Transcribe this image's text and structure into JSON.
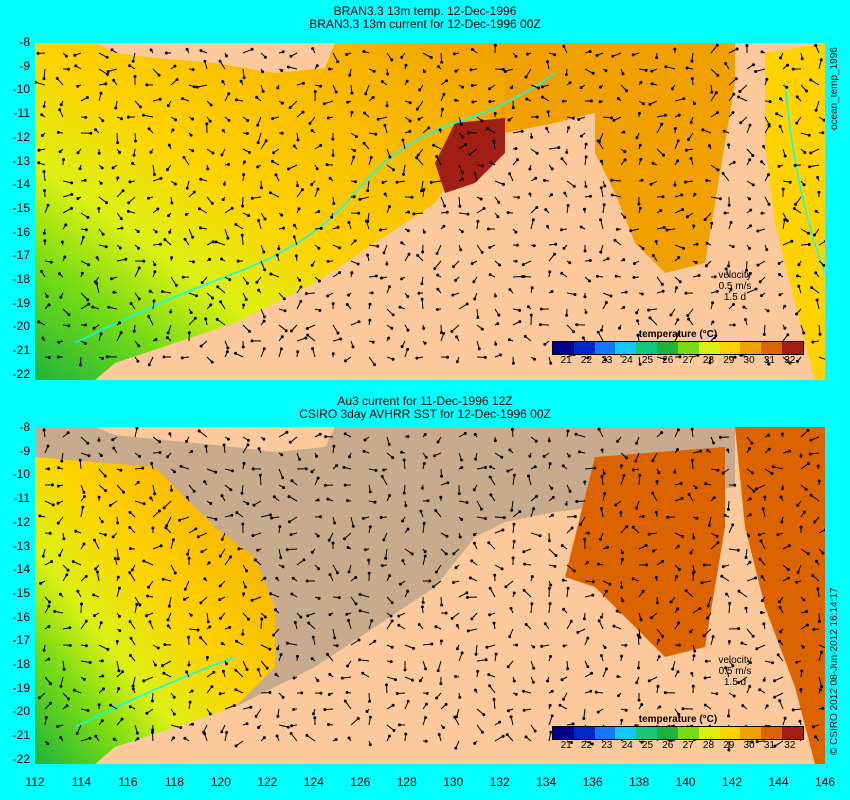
{
  "top_panel": {
    "title_line1": "BRAN3.3 13m temp. 12-Dec-1996",
    "title_line2": "BRAN3.3 13m current for 12-Dec-1996 00Z",
    "side_label": "ocean_temp_1996",
    "velocity_label": "velocity",
    "velocity_scale": "0.5 m/s",
    "velocity_time": "1.5 d",
    "legend_title": "temperature (°C)",
    "land_color": "#fcc99c"
  },
  "bottom_panel": {
    "title_line1": "Au3 current for 11-Dec-1996 12Z",
    "title_line2": "CSIRO 3day AVHRR SST for 12-Dec-1996 00Z",
    "side_label": "© CSIRO 2012  08-Jun-2012 16:14:17",
    "velocity_label": "velocity",
    "velocity_scale": "0.5 m/s",
    "velocity_time": "1.5 d",
    "legend_title": "temperature (°C)",
    "no_data_color": "#c8aa8c"
  },
  "y_ticks": [
    "-8",
    "-9",
    "-10",
    "-11",
    "-12",
    "-13",
    "-14",
    "-15",
    "-16",
    "-17",
    "-18",
    "-19",
    "-20",
    "-21",
    "-22"
  ],
  "x_ticks": [
    "112",
    "114",
    "116",
    "118",
    "120",
    "122",
    "124",
    "126",
    "128",
    "130",
    "132",
    "134",
    "136",
    "138",
    "140",
    "142",
    "144",
    "146"
  ],
  "colorbar": {
    "labels": [
      "21",
      "22",
      "23",
      "24",
      "25",
      "26",
      "27",
      "28",
      "29",
      "30",
      "31",
      "32"
    ],
    "colors": [
      "#00008c",
      "#0028c8",
      "#1478ff",
      "#14c8ff",
      "#14c878",
      "#1eb43c",
      "#78dc14",
      "#dcf014",
      "#ffd200",
      "#f0a000",
      "#dc6400",
      "#a01e14"
    ]
  }
}
